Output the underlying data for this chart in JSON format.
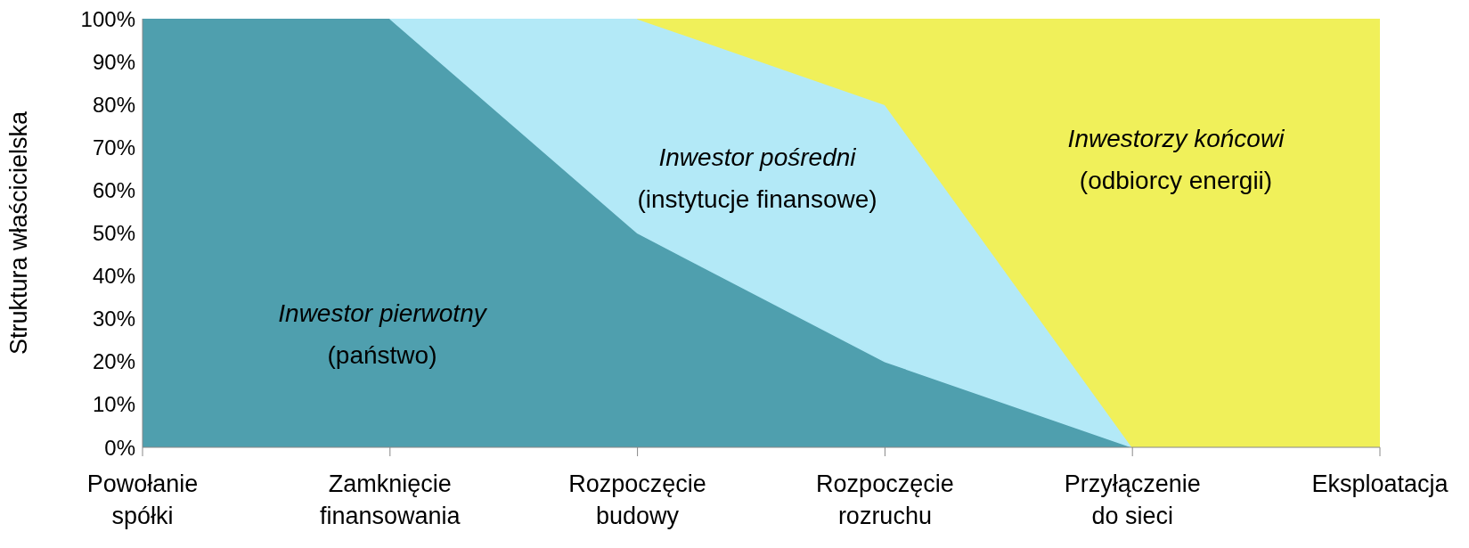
{
  "chart_data": {
    "type": "area",
    "stacked": true,
    "ylabel": "Struktura właścicielska",
    "categories": [
      "Powołanie spółki",
      "Zamknięcie finansowania",
      "Rozpoczęcie budowy",
      "Rozpoczęcie rozruchu",
      "Przyłączenie do sieci",
      "Eksploatacja"
    ],
    "series": [
      {
        "name": "Inwestor pierwotny",
        "color": "#4f9fae",
        "values": [
          100,
          100,
          50,
          20,
          0,
          null
        ]
      },
      {
        "name": "Inwestor pośredni",
        "color": "#b3e9f7",
        "values": [
          null,
          0,
          50,
          60,
          0,
          null
        ]
      },
      {
        "name": "Inwestorzy końcowi",
        "color": "#f0f05a",
        "values": [
          null,
          null,
          0,
          20,
          100,
          100
        ]
      }
    ],
    "annotations": [
      "(państwo)",
      "(instytucje finansowe)",
      "(odbiorcy energii)"
    ],
    "ylim": [
      0,
      100
    ],
    "yticks": [
      {
        "value": 0,
        "label": "0%"
      },
      {
        "value": 10,
        "label": "10%"
      },
      {
        "value": 20,
        "label": "20%"
      },
      {
        "value": 30,
        "label": "30%"
      },
      {
        "value": 40,
        "label": "40%"
      },
      {
        "value": 50,
        "label": "50%"
      },
      {
        "value": 60,
        "label": "60%"
      },
      {
        "value": 70,
        "label": "70%"
      },
      {
        "value": 80,
        "label": "80%"
      },
      {
        "value": 90,
        "label": "90%"
      },
      {
        "value": 100,
        "label": "100%"
      }
    ],
    "grid": false,
    "legend": false
  }
}
